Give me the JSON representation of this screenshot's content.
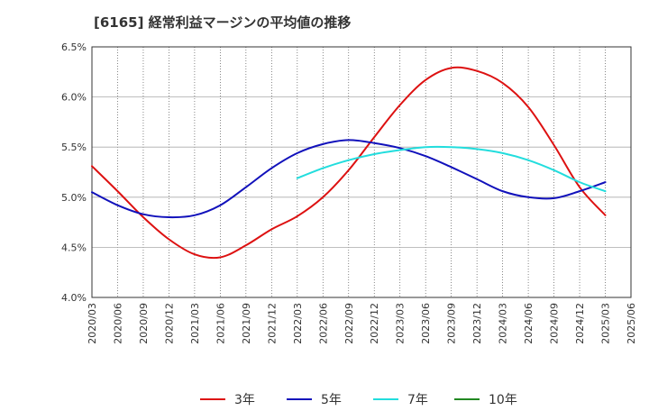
{
  "chart_data": {
    "type": "line",
    "title": "[6165]  経常利益マージンの平均値の推移",
    "xlabel": "",
    "ylabel": "",
    "ylim": [
      4.0,
      6.5
    ],
    "y_ticks": [
      "4.0%",
      "4.5%",
      "5.0%",
      "5.5%",
      "6.0%",
      "6.5%"
    ],
    "x_ticks": [
      "2020/03",
      "2020/06",
      "2020/09",
      "2020/12",
      "2021/03",
      "2021/06",
      "2021/09",
      "2021/12",
      "2022/03",
      "2022/06",
      "2022/09",
      "2022/12",
      "2023/03",
      "2023/06",
      "2023/09",
      "2023/12",
      "2024/03",
      "2024/06",
      "2024/09",
      "2024/12",
      "2025/03",
      "2025/06"
    ],
    "grid": true,
    "legend_position": "bottom",
    "series": [
      {
        "name": "3年",
        "color": "#dd1111",
        "x": [
          "2020/03",
          "2020/06",
          "2020/09",
          "2020/12",
          "2021/03",
          "2021/06",
          "2021/09",
          "2021/12",
          "2022/03",
          "2022/06",
          "2022/09",
          "2022/12",
          "2023/03",
          "2023/06",
          "2023/09",
          "2023/12",
          "2024/03",
          "2024/06",
          "2024/09",
          "2024/12",
          "2025/03"
        ],
        "values": [
          5.31,
          5.06,
          4.8,
          4.58,
          4.43,
          4.4,
          4.52,
          4.68,
          4.81,
          5.0,
          5.27,
          5.6,
          5.92,
          6.17,
          6.29,
          6.26,
          6.14,
          5.9,
          5.52,
          5.1,
          4.82
        ]
      },
      {
        "name": "5年",
        "color": "#1111bb",
        "x": [
          "2020/03",
          "2020/06",
          "2020/09",
          "2020/12",
          "2021/03",
          "2021/06",
          "2021/09",
          "2021/12",
          "2022/03",
          "2022/06",
          "2022/09",
          "2022/12",
          "2023/03",
          "2023/06",
          "2023/09",
          "2023/12",
          "2024/03",
          "2024/06",
          "2024/09",
          "2024/12",
          "2025/03"
        ],
        "values": [
          5.05,
          4.92,
          4.83,
          4.8,
          4.82,
          4.92,
          5.1,
          5.29,
          5.44,
          5.53,
          5.57,
          5.54,
          5.49,
          5.41,
          5.3,
          5.18,
          5.06,
          5.0,
          4.99,
          5.06,
          5.15
        ]
      },
      {
        "name": "7年",
        "color": "#22dddd",
        "x": [
          "2022/03",
          "2022/06",
          "2022/09",
          "2022/12",
          "2023/03",
          "2023/06",
          "2023/09",
          "2023/12",
          "2024/03",
          "2024/06",
          "2024/09",
          "2024/12",
          "2025/03"
        ],
        "values": [
          5.19,
          5.29,
          5.37,
          5.43,
          5.47,
          5.5,
          5.5,
          5.48,
          5.44,
          5.37,
          5.27,
          5.15,
          5.06
        ]
      },
      {
        "name": "10年",
        "color": "#228822",
        "x": [],
        "values": []
      }
    ]
  }
}
